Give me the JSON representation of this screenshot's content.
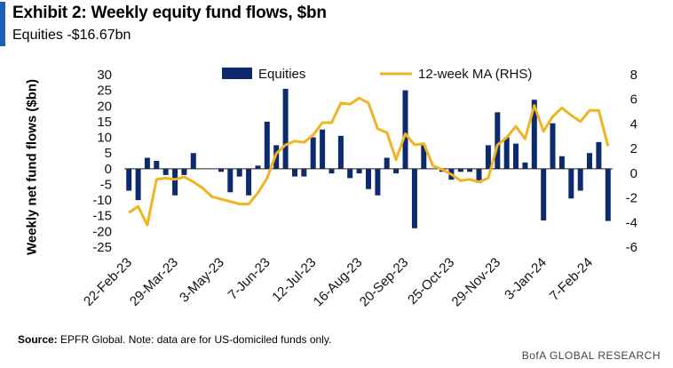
{
  "title": "Exhibit 2: Weekly equity fund flows, $bn",
  "subtitle": "Equities -$16.67bn",
  "footer": {
    "source_label": "Source:",
    "source_text": "EPFR Global. Note: data are for US-domiciled funds only."
  },
  "brand": "BofA GLOBAL RESEARCH",
  "colors": {
    "accent": "#1b5fb5",
    "bars": "#0e2a6e",
    "line": "#f0b323"
  },
  "chart_data": {
    "type": "bar+line",
    "title": "Exhibit 2: Weekly equity fund flows, $bn",
    "ylabel": "Weekly net fund flows ($bn)",
    "ylim_left": [
      -25,
      30
    ],
    "ylim_right": [
      -6,
      8
    ],
    "yticks_left": [
      "30",
      "25",
      "20",
      "15",
      "10",
      "5",
      "0",
      "-5",
      "-10",
      "-15",
      "-20",
      "-25"
    ],
    "yticks_right": [
      "8",
      "6",
      "4",
      "2",
      "0",
      "-2",
      "-4",
      "-6"
    ],
    "x_tick_labels": [
      "22-Feb-23",
      "29-Mar-23",
      "3-May-23",
      "7-Jun-23",
      "12-Jul-23",
      "16-Aug-23",
      "20-Sep-23",
      "25-Oct-23",
      "29-Nov-23",
      "3-Jan-24",
      "7-Feb-24"
    ],
    "x_tick_positions": [
      0,
      5,
      10,
      15,
      20,
      25,
      30,
      35,
      40,
      45,
      50
    ],
    "series": [
      {
        "name": "Equities",
        "type": "bar",
        "axis": "left",
        "values": [
          -7,
          -10,
          3.5,
          2.5,
          -2,
          -8.5,
          -2,
          5,
          0,
          0,
          -1,
          -7.5,
          -2.5,
          -8.5,
          1,
          15,
          7.5,
          25.5,
          -2.5,
          -2.5,
          10,
          12.5,
          -1.5,
          10.5,
          -3,
          -1.5,
          -6.5,
          -8.5,
          3.5,
          -1.5,
          25,
          -19,
          7.5,
          0,
          -1,
          -3.5,
          -1,
          -1,
          -4.5,
          7.5,
          18,
          10,
          8,
          2,
          22,
          -16.5,
          14.5,
          4,
          -9.5,
          -7,
          5,
          8.5,
          -16.67
        ]
      },
      {
        "name": "12-week MA (RHS)",
        "type": "line",
        "axis": "right",
        "values": [
          -3.2,
          -2.7,
          -4.2,
          -0.5,
          -0.4,
          -0.5,
          -0.3,
          -0.7,
          -1.2,
          -1.9,
          -2.1,
          -2.3,
          -2.5,
          -2.5,
          -1.6,
          -0.4,
          1.6,
          2.3,
          2.6,
          2.5,
          3.1,
          4.1,
          4.1,
          5.7,
          5.6,
          6.1,
          5.7,
          3.6,
          3.3,
          1.1,
          3.2,
          2.3,
          2.4,
          0.6,
          0.3,
          -0.1,
          -0.6,
          -0.5,
          -0.7,
          -0.4,
          2.3,
          2.9,
          3.8,
          2.8,
          5.5,
          3.4,
          4.6,
          5.3,
          4.7,
          4.2,
          5.1,
          5.1,
          2.2
        ]
      }
    ]
  }
}
